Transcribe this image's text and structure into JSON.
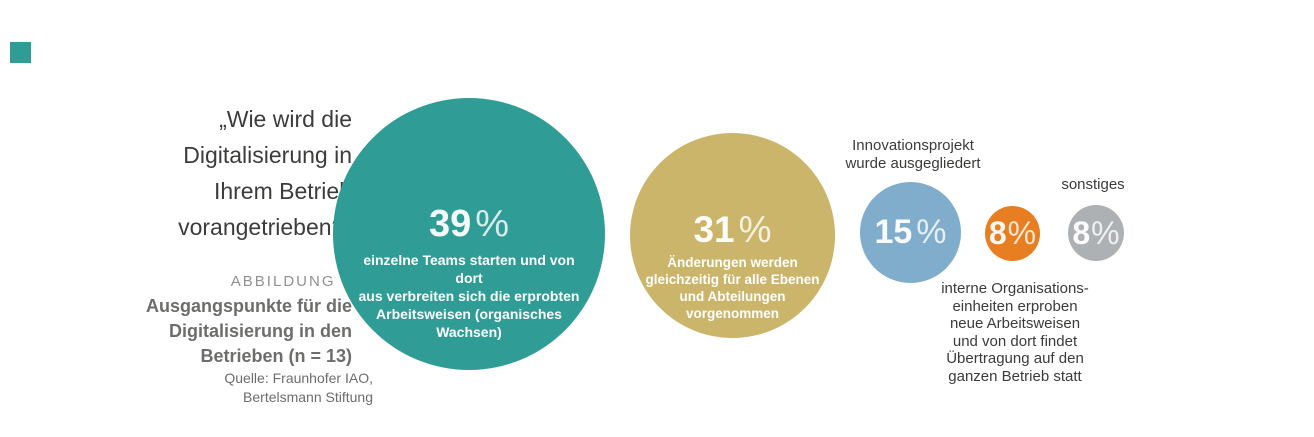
{
  "accent_color": "#2F9C95",
  "figure": {
    "question": "„Wie wird die\nDigitalisierung in\nIhrem Betrieb\nvorangetrieben?“",
    "label": "ABBILDUNG 7",
    "title": "Ausgangspunkte für die\nDigitalisierung in den\nBetrieben (n = 13)",
    "source": "Quelle: Fraunhofer IAO,\nBertelsmann Stiftung"
  },
  "bubbles": {
    "organic": {
      "value": "39",
      "unit": "%",
      "color": "#2F9C95",
      "description": "einzelne Teams starten und von dort\naus verbreiten sich die erprobten\nArbeitsweisen (organisches\nWachsen)"
    },
    "simultaneous": {
      "value": "31",
      "unit": "%",
      "color": "#CBB56A",
      "description": "Änderungen werden\ngleichzeitig für alle Ebenen\nund Abteilungen\nvorgenommen"
    },
    "innovation": {
      "value": "15",
      "unit": "%",
      "color": "#7FADCB",
      "label": "Innovationsprojekt\nwurde ausgegliedert"
    },
    "internal": {
      "value": "8",
      "unit": "%",
      "color": "#E87E22",
      "description": "interne Organisations-\neinheiten erproben\nneue Arbeitsweisen\nund von dort findet\nÜbertragung auf den\nganzen Betrieb statt"
    },
    "other": {
      "value": "8",
      "unit": "%",
      "color": "#AEB1B4",
      "label": "sonstiges"
    }
  },
  "chart_data": {
    "type": "pie",
    "variant": "proportional-bubbles",
    "title": "Wie wird die Digitalisierung in Ihrem Betrieb vorangetrieben?",
    "figure_label": "ABBILDUNG 7",
    "caption": "Ausgangspunkte für die Digitalisierung in den Betrieben (n = 13)",
    "source": "Quelle: Fraunhofer IAO, Bertelsmann Stiftung",
    "sample_size": "n = 13",
    "unit": "%",
    "categories": [
      "einzelne Teams starten und von dort aus verbreiten sich die erprobten Arbeitsweisen (organisches Wachsen)",
      "Änderungen werden gleichzeitig für alle Ebenen und Abteilungen vorgenommen",
      "Innovationsprojekt wurde ausgegliedert",
      "interne Organisationseinheiten erproben neue Arbeitsweisen und von dort findet Übertragung auf den ganzen Betrieb statt",
      "sonstiges"
    ],
    "values": [
      39,
      31,
      15,
      8,
      8
    ],
    "colors": [
      "#2F9C95",
      "#CBB56A",
      "#7FADCB",
      "#E87E22",
      "#AEB1B4"
    ],
    "legend_position": "labels-on-and-around-bubbles",
    "grid": false
  }
}
